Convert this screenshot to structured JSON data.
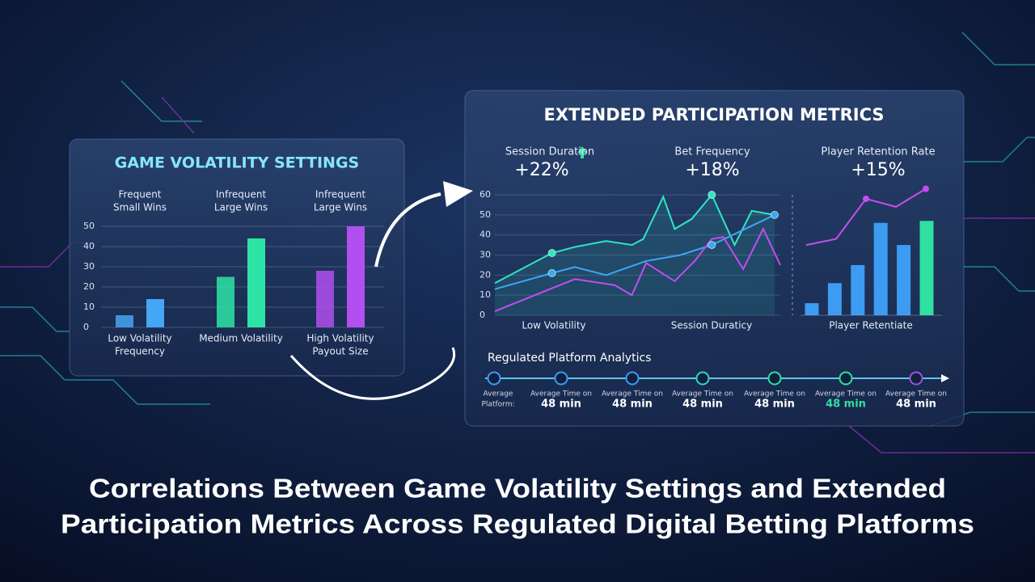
{
  "headline": [
    "Correlations Between Game Volatility Settings and Extended",
    "Participation Metrics Across Regulated Digital Betting Platforms"
  ],
  "chart_data": [
    {
      "type": "bar",
      "title": "GAME VOLATILITY SETTINGS",
      "group_labels": [
        [
          "Frequent",
          "Small Wins"
        ],
        [
          "Infrequent",
          "Large Wins"
        ],
        [
          "Infrequent",
          "Large Wins"
        ]
      ],
      "categories": [
        [
          "Low Volatility",
          "Frequency"
        ],
        [
          "Medium Volatility"
        ],
        [
          "High Volatility",
          "Payout Size"
        ]
      ],
      "colors": [
        "#45a6f5",
        "#2ee3a6",
        "#b24ff0"
      ],
      "series": [
        {
          "values": [
            6,
            25,
            28
          ]
        },
        {
          "values": [
            14,
            44,
            50
          ]
        }
      ],
      "ylim": [
        0,
        50
      ],
      "yticks": [
        0,
        10,
        20,
        30,
        40,
        50
      ],
      "grid": true
    },
    {
      "type": "line",
      "title": "EXTENDED PARTICIPATION METRICS",
      "kpis": [
        {
          "label": "Session Duration",
          "value": "+22%"
        },
        {
          "label": "Bet Frequency",
          "value": "+18%"
        },
        {
          "label": "Player Retention Rate",
          "value": "+15%"
        }
      ],
      "x_labels": [
        "Low Volatility",
        "Session Duraticy"
      ],
      "xlim": [
        0,
        100
      ],
      "ylim": [
        0,
        60
      ],
      "yticks": [
        0,
        10,
        20,
        30,
        40,
        50,
        60
      ],
      "grid": true,
      "series": [
        {
          "color": "#2fe6c4",
          "x": [
            0,
            20,
            28,
            39,
            48,
            52,
            59,
            63,
            69,
            76,
            84,
            90,
            98
          ],
          "values": [
            16,
            31,
            34,
            37,
            35,
            38,
            59,
            43,
            48,
            60,
            35,
            52,
            50
          ]
        },
        {
          "color": "#3aa8f5",
          "x": [
            0,
            20,
            28,
            39,
            53,
            65,
            76,
            98
          ],
          "values": [
            13,
            21,
            24,
            20,
            27,
            30,
            35,
            50
          ]
        },
        {
          "color": "#c44cf0",
          "x": [
            0,
            14,
            28,
            42,
            48,
            53,
            63,
            70,
            76,
            80,
            87,
            94,
            100
          ],
          "values": [
            2,
            10,
            18,
            15,
            10,
            26,
            17,
            27,
            38,
            39,
            23,
            43,
            25
          ]
        }
      ]
    },
    {
      "type": "bar",
      "x_label": "Player Retentiate",
      "categories": [
        null,
        null,
        null,
        null,
        null,
        null
      ],
      "values": [
        6,
        16,
        25,
        46,
        35,
        47
      ],
      "colors": [
        "#3d9bf2",
        "#3d9bf2",
        "#3d9bf2",
        "#3d9bf2",
        "#3d9bf2",
        "#2fe0a0"
      ],
      "trend": {
        "color": "#c84cf0",
        "values": [
          35,
          38,
          58,
          54,
          63
        ]
      },
      "ylim": [
        0,
        65
      ]
    }
  ],
  "timeline": {
    "title": "Regulated Platform Analytics",
    "steps": [
      {
        "label": [
          "Average",
          "Platform:"
        ]
      },
      {
        "label": [
          "Average Time on"
        ],
        "value": "48 min"
      },
      {
        "label": [
          "Average Time on"
        ],
        "value": "48 min"
      },
      {
        "label": [
          "Average Time on"
        ],
        "value": "48 min"
      },
      {
        "label": [
          "Average Time on"
        ],
        "value": "48 min"
      },
      {
        "label": [
          "Average Time on"
        ],
        "value": "48 min"
      },
      {
        "label": [
          "Average Time on"
        ],
        "value": "48 min"
      }
    ]
  }
}
